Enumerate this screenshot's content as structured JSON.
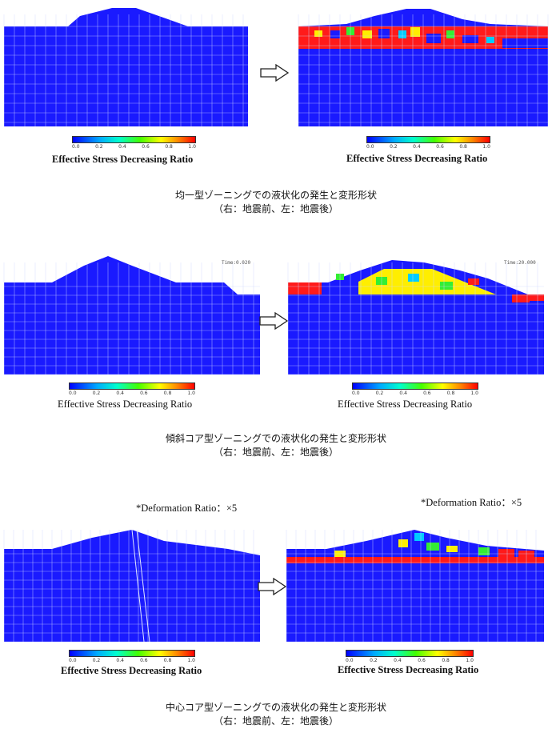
{
  "colors": {
    "mesh_blue": "#1a1aff",
    "grid_line": "#d0d8ff",
    "red": "#ff1a1a",
    "yellow": "#ffee00",
    "green": "#33ee33",
    "cyan": "#00ccff"
  },
  "colorbar": {
    "ticks": [
      "0.0",
      "0.2",
      "0.4",
      "0.6",
      "0.8",
      "1.0"
    ]
  },
  "sections": [
    {
      "legend_left": "Effective Stress Decreasing Ratio",
      "legend_right": "Effective Stress Decreasing Ratio",
      "caption_line1": "均一型ゾーニングでの液状化の発生と変形形状",
      "caption_line2": "（右：地震前、左：地震後）"
    },
    {
      "timer_left": "Time:0.020",
      "timer_right": "Time:20.000",
      "legend_left": "Effective Stress Decreasing Ratio",
      "legend_right": "Effective Stress Decreasing Ratio",
      "caption_line1": "傾斜コア型ゾーニングでの液状化の発生と変形形状",
      "caption_line2": "（右：地震前、左：地震後）"
    },
    {
      "deform_left": "*Deformation Ratio：×5",
      "deform_right": "*Deformation Ratio：×5",
      "legend_left": "Effective Stress Decreasing Ratio",
      "legend_right": "Effective Stress Decreasing Ratio",
      "caption_line1": "中心コア型ゾーニングでの液状化の発生と変形形状",
      "caption_line2": "（右：地震前、左：地震後）"
    }
  ]
}
